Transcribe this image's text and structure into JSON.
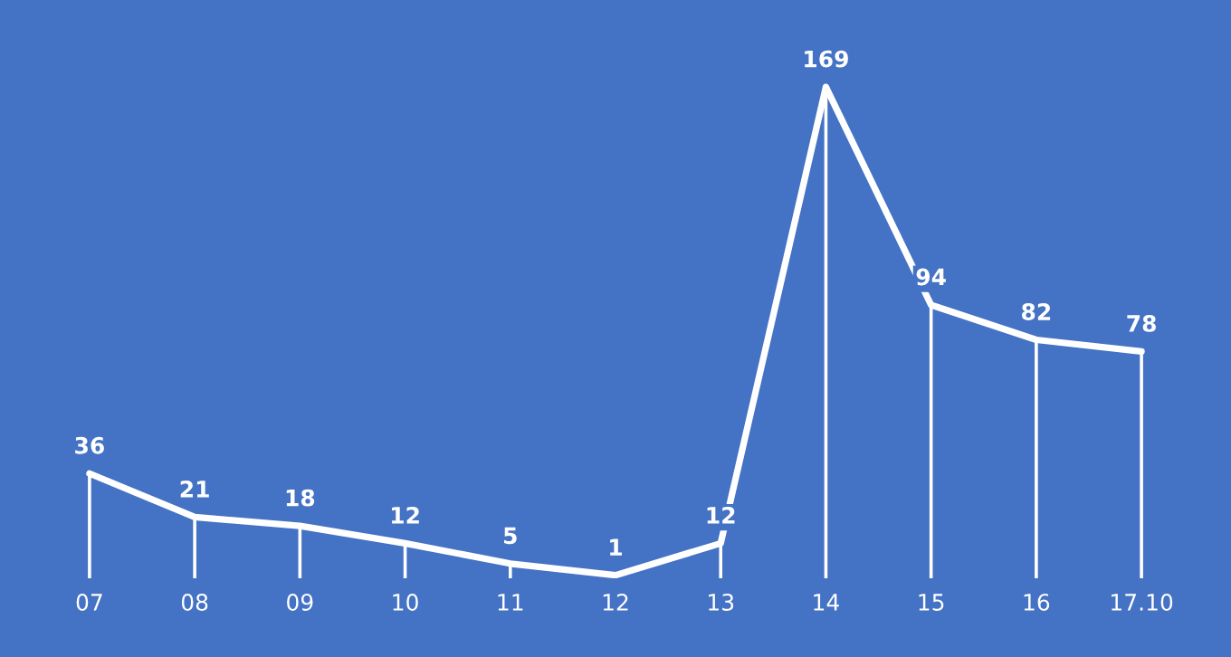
{
  "chart_data": {
    "type": "line",
    "categories": [
      "07",
      "08",
      "09",
      "10",
      "11",
      "12",
      "13",
      "14",
      "15",
      "16",
      "17.10"
    ],
    "series": [
      {
        "color": "#ffffff",
        "values": [
          36,
          21,
          18,
          12,
          5,
          1,
          12,
          169,
          94,
          82,
          78
        ]
      }
    ],
    "data_labels": true,
    "grid": "x",
    "legend": false,
    "marker": "none",
    "line_style": "solid",
    "tick_labels": "x"
  }
}
